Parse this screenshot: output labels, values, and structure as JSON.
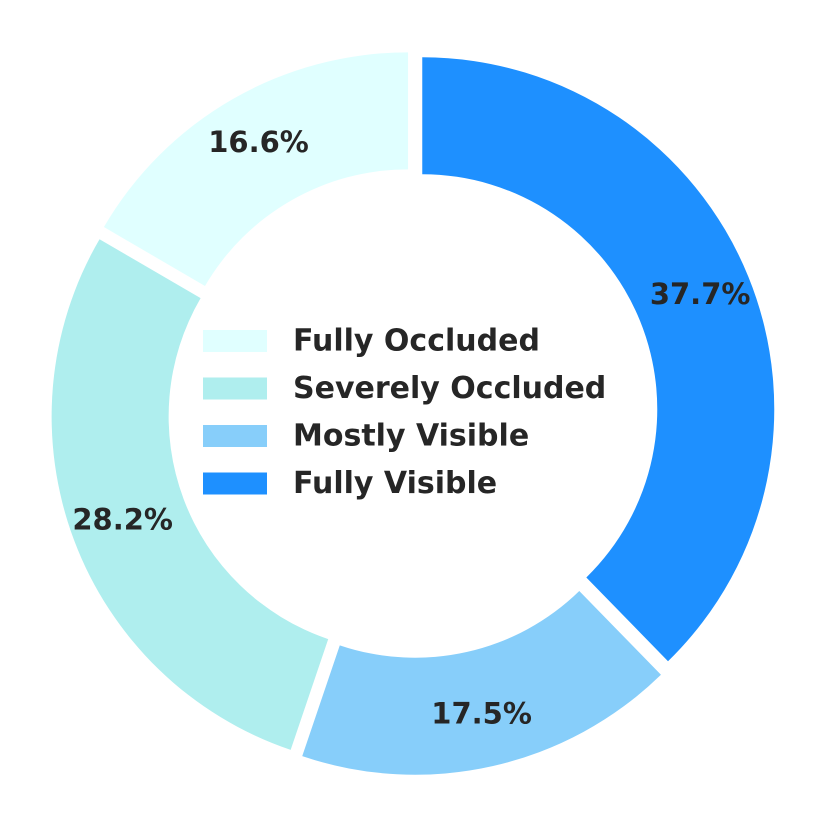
{
  "chart_data": {
    "type": "donut",
    "categories": [
      "Fully Occluded",
      "Severely Occluded",
      "Mostly Visible",
      "Fully Visible"
    ],
    "values": [
      16.6,
      28.2,
      17.5,
      37.7
    ],
    "value_labels": [
      "16.6%",
      "28.2%",
      "17.5%",
      "37.7%"
    ],
    "colors": [
      "#e0ffff",
      "#afeeee",
      "#87cefa",
      "#1e90ff"
    ],
    "legend": "center"
  }
}
